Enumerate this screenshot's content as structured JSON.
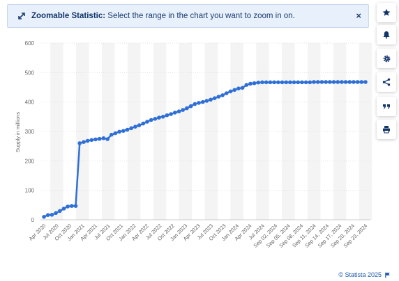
{
  "banner": {
    "title": "Zoomable Statistic:",
    "message": "Select the range in the chart you want to zoom in on.",
    "close_symbol": "×",
    "icon": "expand-arrows-icon"
  },
  "sidebar": {
    "buttons": [
      {
        "name": "favorite",
        "icon": "star-icon"
      },
      {
        "name": "notification",
        "icon": "bell-icon"
      },
      {
        "name": "settings",
        "icon": "gear-icon"
      },
      {
        "name": "share",
        "icon": "share-icon"
      },
      {
        "name": "cite",
        "icon": "quote-icon"
      },
      {
        "name": "print",
        "icon": "printer-icon"
      }
    ]
  },
  "credit": {
    "text": "© Statista 2025",
    "icon": "flag-icon"
  },
  "colors": {
    "series": "#2f6fd6",
    "accent": "#1e5aa8",
    "banner_bg": "#e8f0fb"
  },
  "chart_data": {
    "type": "line",
    "ylabel": "Supply in millions",
    "ylim": [
      0,
      600
    ],
    "yticks": [
      0,
      100,
      200,
      300,
      400,
      500,
      600
    ],
    "grid": true,
    "xtick_labels": [
      "Apr 2020",
      "Jul 2020",
      "Oct 2020",
      "Jan 2021",
      "Apr 2021",
      "Jul 2021",
      "Oct 2021",
      "Jan 2022",
      "Apr 2022",
      "Jul 2022",
      "Oct 2022",
      "Jan 2023",
      "Apr 2023",
      "Jul 2023",
      "Oct 2023",
      "Jan 2024",
      "Apr 2024",
      "Jul 2024",
      "Sep 02, 2024",
      "Sep 05, 2024",
      "Sep 08, 2024",
      "Sep 11, 2024",
      "Sep 14, 2024",
      "Sep 17, 2024",
      "Sep 20, 2024",
      "Sep 23, 2024"
    ],
    "series": [
      {
        "values": [
          10,
          16,
          17,
          23,
          30,
          38,
          45,
          47,
          47,
          260,
          264,
          268,
          271,
          273,
          275,
          277,
          274,
          289,
          294,
          299,
          302,
          306,
          311,
          316,
          321,
          327,
          333,
          339,
          343,
          347,
          350,
          355,
          359,
          364,
          368,
          373,
          379,
          386,
          393,
          397,
          400,
          404,
          408,
          413,
          418,
          423,
          430,
          436,
          441,
          446,
          448,
          458,
          462,
          464,
          466,
          467,
          467,
          467,
          467,
          467,
          467,
          467,
          467,
          467,
          467,
          467,
          467,
          467,
          468,
          468,
          468,
          468,
          468,
          468,
          468,
          468,
          468,
          468,
          468,
          468,
          468,
          468
        ]
      }
    ]
  }
}
